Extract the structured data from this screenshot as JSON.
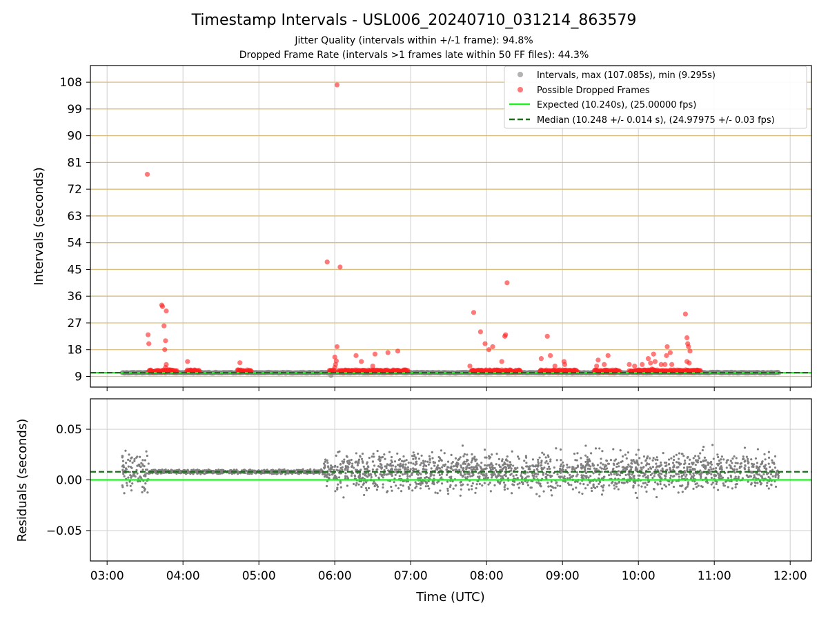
{
  "title": "Timestamp Intervals - USL006_20240710_031214_863579",
  "subtitle1": "Jitter Quality (intervals within +/-1 frame): 94.8%",
  "subtitle2": "Dropped Frame Rate (intervals >1 frames late within 50 FF files): 44.3%",
  "colors": {
    "intervals": "#7f7f7f",
    "dropped": "#ff2020",
    "expected": "#22ee22",
    "median": "#1a6e1a",
    "hgrid": "#d9bd7a",
    "grid": "#cfcfcf"
  },
  "chart_data": [
    {
      "type": "scatter",
      "panel": "intervals",
      "ylabel": "Intervals (seconds)",
      "xlim": [
        2.78,
        12.28
      ],
      "ylim": [
        5.4,
        113.6
      ],
      "yticks": [
        9,
        18,
        27,
        36,
        45,
        54,
        63,
        72,
        81,
        90,
        99,
        108
      ],
      "grid": "on",
      "legend_position": "top-right",
      "legend": [
        "Intervals, max (107.085s), min (9.295s)",
        "Possible Dropped Frames",
        "Expected (10.240s), (25.00000 fps)",
        "Median (10.248 +/- 0.014 s), (24.97975 +/- 0.03 fps)"
      ],
      "expected_line": 10.24,
      "median_line": 10.248,
      "baseline_range": [
        3.2,
        11.85
      ],
      "dropped_runs": [
        [
          3.55,
          3.92
        ],
        [
          4.05,
          4.22
        ],
        [
          4.72,
          4.9
        ],
        [
          5.93,
          6.0
        ],
        [
          6.05,
          6.97
        ],
        [
          7.8,
          8.45
        ],
        [
          8.7,
          9.2
        ],
        [
          9.42,
          9.75
        ],
        [
          9.88,
          10.82
        ]
      ],
      "dropped_points": [
        [
          3.53,
          77.0
        ],
        [
          3.54,
          23.0
        ],
        [
          3.55,
          20.0
        ],
        [
          3.72,
          33.0
        ],
        [
          3.73,
          32.5
        ],
        [
          3.75,
          26.0
        ],
        [
          3.76,
          18.0
        ],
        [
          3.77,
          21.0
        ],
        [
          3.78,
          31.0
        ],
        [
          3.78,
          13.0
        ],
        [
          3.77,
          12.0
        ],
        [
          4.06,
          14.0
        ],
        [
          4.75,
          13.6
        ],
        [
          5.9,
          47.5
        ],
        [
          6.0,
          15.5
        ],
        [
          6.02,
          14.2
        ],
        [
          6.03,
          107.085
        ],
        [
          6.03,
          19.0
        ],
        [
          6.07,
          45.8
        ],
        [
          6.0,
          12.0
        ],
        [
          6.01,
          13.0
        ],
        [
          5.95,
          11.0
        ],
        [
          6.28,
          16.0
        ],
        [
          6.35,
          14.0
        ],
        [
          6.5,
          12.5
        ],
        [
          6.53,
          16.5
        ],
        [
          6.7,
          17.0
        ],
        [
          6.83,
          17.5
        ],
        [
          7.78,
          12.5
        ],
        [
          7.83,
          30.5
        ],
        [
          7.92,
          24.0
        ],
        [
          7.98,
          20.0
        ],
        [
          8.03,
          18.0
        ],
        [
          8.08,
          19.0
        ],
        [
          8.2,
          14.0
        ],
        [
          8.24,
          22.5
        ],
        [
          8.25,
          23.0
        ],
        [
          8.27,
          40.5
        ],
        [
          8.72,
          15.0
        ],
        [
          8.8,
          22.5
        ],
        [
          8.84,
          16.0
        ],
        [
          8.9,
          12.5
        ],
        [
          9.02,
          14.0
        ],
        [
          9.03,
          13.0
        ],
        [
          9.45,
          12.5
        ],
        [
          9.47,
          14.5
        ],
        [
          9.55,
          13.0
        ],
        [
          9.6,
          16.0
        ],
        [
          9.88,
          13.0
        ],
        [
          9.95,
          12.5
        ],
        [
          10.05,
          13.0
        ],
        [
          10.13,
          15.0
        ],
        [
          10.16,
          13.5
        ],
        [
          10.2,
          16.5
        ],
        [
          10.22,
          14.0
        ],
        [
          10.18,
          11.5
        ],
        [
          10.3,
          13.0
        ],
        [
          10.35,
          13.0
        ],
        [
          10.37,
          16.0
        ],
        [
          10.38,
          19.0
        ],
        [
          10.42,
          17.0
        ],
        [
          10.44,
          13.0
        ],
        [
          10.62,
          30.0
        ],
        [
          10.64,
          22.0
        ],
        [
          10.65,
          20.0
        ],
        [
          10.66,
          19.0
        ],
        [
          10.68,
          17.5
        ],
        [
          10.64,
          14.0
        ],
        [
          10.67,
          13.5
        ]
      ],
      "min_point": [
        5.95,
        9.295
      ]
    },
    {
      "type": "scatter",
      "panel": "residuals",
      "ylabel": "Residuals (seconds)",
      "xlabel": "Time (UTC)",
      "xlim": [
        2.78,
        12.28
      ],
      "ylim": [
        -0.08,
        0.08
      ],
      "yticks": [
        0.05,
        0.0,
        -0.05
      ],
      "ytick_labels": [
        "0.05",
        "0.00",
        "−0.05"
      ],
      "xticks": [
        3,
        4,
        5,
        6,
        7,
        8,
        9,
        10,
        11,
        12
      ],
      "xtick_labels": [
        "03:00",
        "04:00",
        "05:00",
        "06:00",
        "07:00",
        "08:00",
        "09:00",
        "10:00",
        "11:00",
        "12:00"
      ],
      "grid": "on",
      "expected_line": 0.0,
      "median_line": 0.008,
      "segments": [
        {
          "x": [
            3.2,
            3.55
          ],
          "center": 0.008,
          "spread": 0.03
        },
        {
          "x": [
            3.55,
            5.85
          ],
          "center": 0.008,
          "spread": 0.003
        },
        {
          "x": [
            5.85,
            6.0
          ],
          "center": 0.008,
          "spread": 0.02
        },
        {
          "x": [
            6.0,
            11.85
          ],
          "center": 0.008,
          "spread": 0.028
        }
      ]
    }
  ]
}
